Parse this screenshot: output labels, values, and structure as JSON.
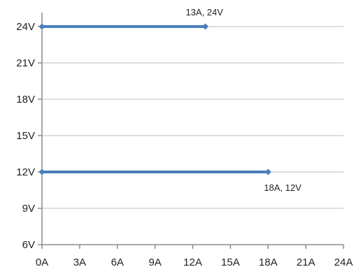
{
  "chart_data": {
    "type": "line",
    "x_ticks": [
      "0A",
      "3A",
      "6A",
      "9A",
      "12A",
      "15A",
      "18A",
      "21A",
      "24A"
    ],
    "y_ticks": [
      "6V",
      "9V",
      "12V",
      "15V",
      "18V",
      "21V",
      "24V"
    ],
    "xlim": [
      0,
      24
    ],
    "ylim": [
      6,
      24
    ],
    "grid": "horizontal",
    "series": [
      {
        "x": [
          0,
          13
        ],
        "y": [
          24,
          24
        ],
        "label": "13A, 24V",
        "color": "#4a7ebb"
      },
      {
        "x": [
          0,
          18
        ],
        "y": [
          12,
          12
        ],
        "label": "18A, 12V",
        "color": "#4a7ebb"
      }
    ]
  }
}
